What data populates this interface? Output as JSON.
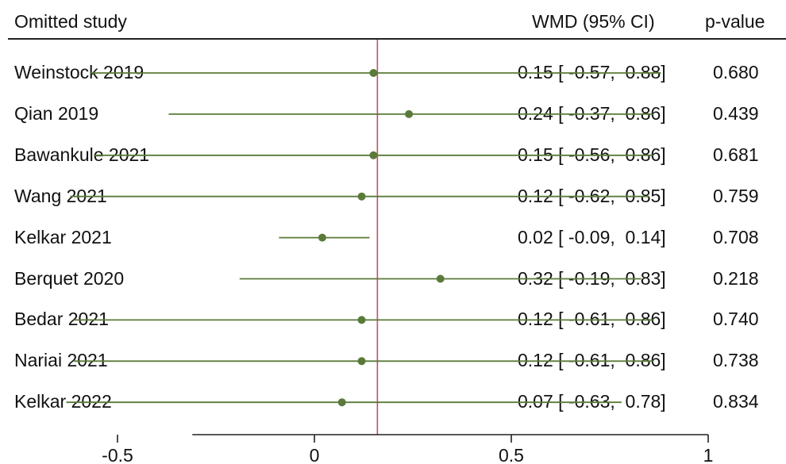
{
  "chart_data": {
    "type": "forest",
    "columns": {
      "study": "Omitted study",
      "estimate": "WMD (95% CI)",
      "pvalue": "p-value"
    },
    "rows": [
      {
        "study": "Weinstock  2019",
        "est": 0.15,
        "lo": -0.57,
        "hi": 0.88,
        "label": "0.15 [ -0.57,  0.88]",
        "p": "0.680"
      },
      {
        "study": "Qian 2019",
        "est": 0.24,
        "lo": -0.37,
        "hi": 0.86,
        "label": "0.24 [ -0.37,  0.86]",
        "p": "0.439"
      },
      {
        "study": "Bawankule 2021",
        "est": 0.15,
        "lo": -0.56,
        "hi": 0.86,
        "label": "0.15 [ -0.56,  0.86]",
        "p": "0.681"
      },
      {
        "study": "Wang 2021",
        "est": 0.12,
        "lo": -0.62,
        "hi": 0.85,
        "label": "0.12 [ -0.62,  0.85]",
        "p": "0.759"
      },
      {
        "study": "Kelkar 2021",
        "est": 0.02,
        "lo": -0.09,
        "hi": 0.14,
        "label": "0.02 [ -0.09,  0.14]",
        "p": "0.708"
      },
      {
        "study": "Berquet 2020",
        "est": 0.32,
        "lo": -0.19,
        "hi": 0.83,
        "label": "0.32 [ -0.19,  0.83]",
        "p": "0.218"
      },
      {
        "study": "Bedar 2021",
        "est": 0.12,
        "lo": -0.61,
        "hi": 0.86,
        "label": "0.12 [ -0.61,  0.86]",
        "p": "0.740"
      },
      {
        "study": "Nariai 2021",
        "est": 0.12,
        "lo": -0.61,
        "hi": 0.86,
        "label": "0.12 [ -0.61,  0.86]",
        "p": "0.738"
      },
      {
        "study": "Kelkar 2022",
        "est": 0.07,
        "lo": -0.63,
        "hi": 0.78,
        "label": "0.07 [ -0.63,  0.78]",
        "p": "0.834"
      }
    ],
    "reference_line": 0.16,
    "xlim": [
      -0.6,
      1.0
    ],
    "xticks": [
      "-0.5",
      "0",
      "0.5",
      "1"
    ],
    "colors": {
      "ci": "#5a7a3a",
      "point": "#5a7a3a",
      "reference": "#c0506a"
    }
  }
}
